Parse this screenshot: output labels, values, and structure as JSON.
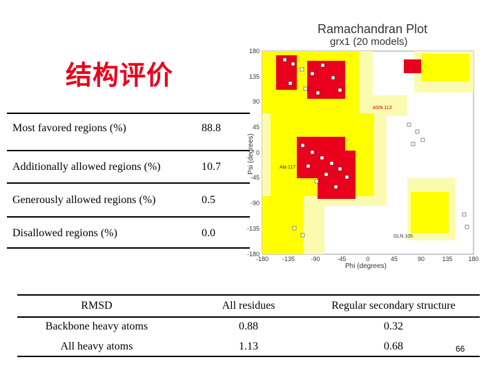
{
  "slide": {
    "title": "结构评价",
    "page_number": "66"
  },
  "stats_table": {
    "rows": [
      {
        "label": "Most favored regions (%)",
        "value": "88.8"
      },
      {
        "label": "Additionally allowed regions (%)",
        "value": "10.7"
      },
      {
        "label": "Generously allowed regions (%)",
        "value": "0.5"
      },
      {
        "label": "Disallowed regions (%)",
        "value": "0.0"
      }
    ]
  },
  "plot": {
    "title": "Ramachandran Plot",
    "subtitle": "grx1 (20 models)",
    "xlabel": "Phi (degrees)",
    "ylabel": "Psi (degrees)",
    "x_ticks": [
      "-180",
      "-135",
      "-90",
      "-45",
      "0",
      "45",
      "90",
      "135",
      "180"
    ],
    "y_ticks": [
      "180",
      "135",
      "90",
      "45",
      "0",
      "-45",
      "-90",
      "-135",
      "-180"
    ],
    "annotations": [
      "ASN 113",
      "Ala 117",
      "GLN 105"
    ],
    "colors": {
      "core": "#e8001c",
      "allowed": "#ffff00",
      "generous": "#fbfbb0"
    }
  },
  "rmsd_table": {
    "headers": [
      "RMSD",
      "All residues",
      "Regular secondary structure"
    ],
    "rows": [
      [
        "Backbone heavy atoms",
        "0.88",
        "0.32"
      ],
      [
        "All heavy atoms",
        "1.13",
        "0.68"
      ]
    ]
  }
}
